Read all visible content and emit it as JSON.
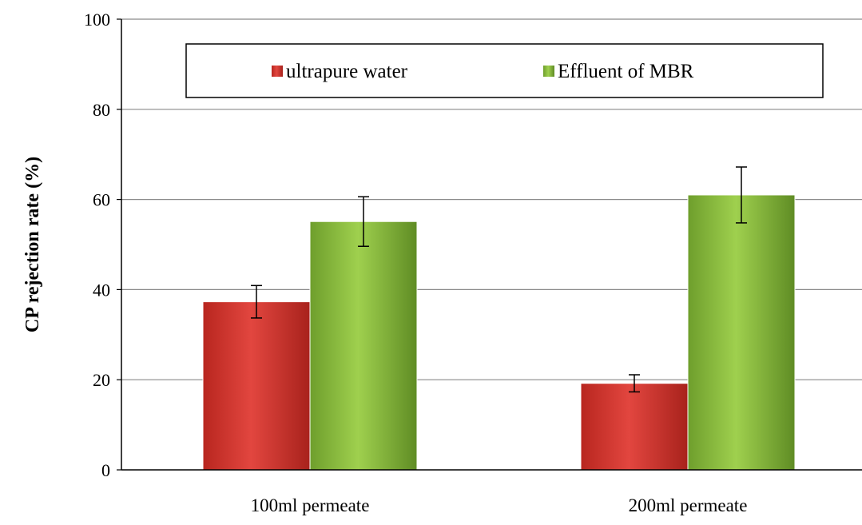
{
  "chart_data": {
    "type": "bar",
    "title": "",
    "xlabel": "",
    "ylabel": "CP rejection rate (%)",
    "ylim": [
      0,
      100
    ],
    "yticks": [
      0,
      20,
      40,
      60,
      80,
      100
    ],
    "grid": true,
    "legend_position": "top",
    "categories": [
      "100ml permeate",
      "200ml permeate"
    ],
    "series": [
      {
        "name": "ultrapure water",
        "color": "#d63b35",
        "values": [
          37.3,
          19.2
        ],
        "errors": [
          3.6,
          1.9
        ]
      },
      {
        "name": "Effluent of MBR",
        "color": "#8cbf3f",
        "values": [
          55.1,
          61.0
        ],
        "errors": [
          5.5,
          6.2
        ]
      }
    ]
  }
}
